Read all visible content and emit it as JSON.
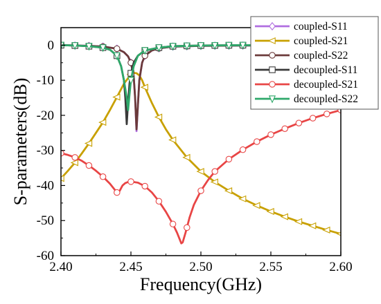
{
  "chart_data": {
    "type": "line",
    "xlabel": "Frequency(GHz)",
    "ylabel": "S-parameters(dB)",
    "xlim": [
      2.4,
      2.6
    ],
    "ylim": [
      -60,
      5
    ],
    "x_ticks": [
      "2.40",
      "2.45",
      "2.50",
      "2.55",
      "2.60"
    ],
    "y_ticks": [
      "0",
      "-10",
      "-20",
      "-30",
      "-40",
      "-50",
      "-60"
    ],
    "grid": false,
    "legend_position": "top-right",
    "series": [
      {
        "name": "coupled-S11",
        "color": "#b06ee0",
        "marker": "diamond",
        "x": [
          2.4,
          2.41,
          2.42,
          2.43,
          2.44,
          2.445,
          2.448,
          2.45,
          2.452,
          2.453,
          2.454,
          2.455,
          2.456,
          2.458,
          2.46,
          2.465,
          2.47,
          2.48,
          2.5,
          2.53,
          2.56,
          2.6
        ],
        "y": [
          0,
          -0.1,
          -0.2,
          -0.4,
          -1.0,
          -2.0,
          -3.2,
          -5.0,
          -9.0,
          -15.0,
          -24.5,
          -17.0,
          -10.0,
          -5.0,
          -3.0,
          -1.5,
          -0.9,
          -0.4,
          -0.2,
          -0.1,
          -0.05,
          0
        ]
      },
      {
        "name": "coupled-S21",
        "color": "#c8a000",
        "marker": "triangle-left",
        "x": [
          2.4,
          2.405,
          2.41,
          2.415,
          2.42,
          2.425,
          2.43,
          2.435,
          2.44,
          2.445,
          2.45,
          2.452,
          2.454,
          2.456,
          2.458,
          2.46,
          2.465,
          2.47,
          2.475,
          2.48,
          2.49,
          2.5,
          2.51,
          2.52,
          2.53,
          2.54,
          2.55,
          2.56,
          2.57,
          2.58,
          2.59,
          2.6
        ],
        "y": [
          -38.0,
          -35.8,
          -33.5,
          -30.8,
          -28.0,
          -25.0,
          -22.0,
          -18.5,
          -14.8,
          -11.0,
          -8.3,
          -7.9,
          -8.0,
          -8.6,
          -10.0,
          -12.0,
          -16.5,
          -20.5,
          -24.0,
          -27.0,
          -32.0,
          -36.0,
          -39.0,
          -41.5,
          -43.8,
          -45.7,
          -47.4,
          -48.9,
          -50.3,
          -51.5,
          -52.7,
          -53.8
        ]
      },
      {
        "name": "coupled-S22",
        "color": "#6b3a3a",
        "marker": "circle",
        "x": [
          2.4,
          2.41,
          2.42,
          2.43,
          2.44,
          2.445,
          2.448,
          2.45,
          2.452,
          2.453,
          2.454,
          2.455,
          2.456,
          2.458,
          2.46,
          2.465,
          2.47,
          2.48,
          2.5,
          2.53,
          2.56,
          2.6
        ],
        "y": [
          0,
          -0.1,
          -0.2,
          -0.4,
          -1.0,
          -2.0,
          -3.2,
          -5.0,
          -9.0,
          -15.0,
          -24.0,
          -17.0,
          -10.0,
          -5.0,
          -3.0,
          -1.5,
          -0.9,
          -0.4,
          -0.2,
          -0.1,
          -0.05,
          0
        ]
      },
      {
        "name": "decoupled-S11",
        "color": "#3a3a3a",
        "marker": "square",
        "x": [
          2.4,
          2.41,
          2.42,
          2.43,
          2.435,
          2.44,
          2.443,
          2.445,
          2.446,
          2.447,
          2.448,
          2.449,
          2.45,
          2.452,
          2.455,
          2.46,
          2.47,
          2.48,
          2.5,
          2.53,
          2.56,
          2.6
        ],
        "y": [
          0,
          -0.1,
          -0.3,
          -0.7,
          -1.3,
          -3.0,
          -6.0,
          -10.0,
          -15.0,
          -22.5,
          -16.0,
          -11.0,
          -8.0,
          -5.0,
          -3.0,
          -1.5,
          -0.7,
          -0.3,
          -0.1,
          0,
          0,
          0
        ]
      },
      {
        "name": "decoupled-S21",
        "color": "#e84545",
        "marker": "circle",
        "x": [
          2.4,
          2.405,
          2.41,
          2.415,
          2.42,
          2.425,
          2.43,
          2.435,
          2.438,
          2.44,
          2.442,
          2.444,
          2.446,
          2.448,
          2.45,
          2.455,
          2.46,
          2.465,
          2.47,
          2.475,
          2.48,
          2.483,
          2.485,
          2.486,
          2.487,
          2.489,
          2.492,
          2.495,
          2.5,
          2.505,
          2.51,
          2.52,
          2.53,
          2.54,
          2.55,
          2.56,
          2.57,
          2.58,
          2.59,
          2.6
        ],
        "y": [
          -30.8,
          -31.3,
          -32.0,
          -33.0,
          -34.3,
          -35.8,
          -37.5,
          -39.5,
          -41.0,
          -42.0,
          -41.5,
          -40.0,
          -39.3,
          -39.0,
          -38.9,
          -39.2,
          -40.2,
          -42.0,
          -44.5,
          -47.5,
          -51.0,
          -53.5,
          -55.5,
          -56.5,
          -56.2,
          -53.5,
          -49.0,
          -45.5,
          -41.5,
          -38.5,
          -36.0,
          -32.5,
          -29.8,
          -27.5,
          -25.5,
          -23.8,
          -22.2,
          -20.8,
          -19.6,
          -18.5
        ]
      },
      {
        "name": "decoupled-S22",
        "color": "#2ea86a",
        "marker": "triangle-down",
        "x": [
          2.4,
          2.41,
          2.42,
          2.43,
          2.435,
          2.44,
          2.443,
          2.445,
          2.447,
          2.448,
          2.449,
          2.45,
          2.452,
          2.455,
          2.46,
          2.47,
          2.48,
          2.5,
          2.53,
          2.56,
          2.6
        ],
        "y": [
          0,
          -0.1,
          -0.3,
          -0.7,
          -1.3,
          -3.0,
          -6.0,
          -10.0,
          -15.0,
          -18.5,
          -14.0,
          -10.0,
          -6.0,
          -3.0,
          -1.5,
          -0.7,
          -0.3,
          -0.1,
          0,
          0,
          0
        ]
      }
    ]
  }
}
